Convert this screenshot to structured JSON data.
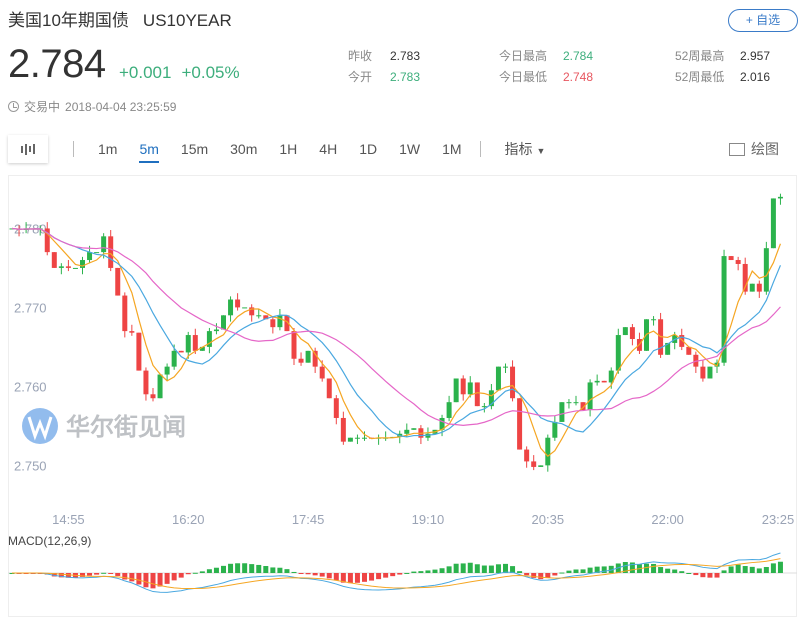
{
  "header": {
    "name": "美国10年期国债",
    "code": "US10YEAR",
    "add_label": "+ 自选",
    "price": "2.784",
    "change": "+0.001",
    "change_pct": "+0.05%",
    "status": "交易中",
    "timestamp": "2018-04-04 23:25:59"
  },
  "stats": [
    {
      "label": "昨收",
      "value": "2.783",
      "color": "neutral"
    },
    {
      "label": "今开",
      "value": "2.783",
      "color": "green"
    },
    {
      "label": "今日最高",
      "value": "2.784",
      "color": "green"
    },
    {
      "label": "今日最低",
      "value": "2.748",
      "color": "red"
    },
    {
      "label": "52周最高",
      "value": "2.957",
      "color": "neutral"
    },
    {
      "label": "52周最低",
      "value": "2.016",
      "color": "neutral"
    }
  ],
  "toolbar": {
    "timeframes": [
      "1m",
      "5m",
      "15m",
      "30m",
      "1H",
      "4H",
      "1D",
      "1W",
      "1M"
    ],
    "active": "5m",
    "indicators_label": "指标",
    "draw_label": "绘图"
  },
  "watermark": "华尔街见闻",
  "colors": {
    "up": "#2bb24c",
    "down": "#ee4444",
    "ma5": "#f5a623",
    "ma10": "#4aa8e0",
    "ma20": "#e567c8",
    "accent": "#1f6fbf"
  },
  "chart_data": {
    "type": "candlestick",
    "interval": "5m",
    "ylim": [
      2.7465,
      2.7855
    ],
    "yticks": [
      "2.780",
      "2.770",
      "2.760",
      "2.750"
    ],
    "xticks": [
      {
        "bar": 8,
        "label": "14:55"
      },
      {
        "bar": 25,
        "label": "16:20"
      },
      {
        "bar": 42,
        "label": "17:45"
      },
      {
        "bar": 59,
        "label": "19:10"
      },
      {
        "bar": 76,
        "label": "20:35"
      },
      {
        "bar": 93,
        "label": "22:00"
      },
      {
        "bar": 110,
        "label": "23:25"
      }
    ],
    "closes": [
      2.78,
      2.7798,
      2.78,
      2.7799,
      2.78,
      2.777,
      2.775,
      2.7752,
      2.775,
      2.775,
      2.776,
      2.777,
      2.777,
      2.779,
      2.775,
      2.7715,
      2.767,
      2.7668,
      2.762,
      2.759,
      2.7585,
      2.7615,
      2.7625,
      2.7645,
      2.7643,
      2.7665,
      2.7645,
      2.765,
      2.767,
      2.7672,
      2.769,
      2.771,
      2.77,
      2.77,
      2.769,
      2.769,
      2.7685,
      2.7675,
      2.769,
      2.767,
      2.7635,
      2.763,
      2.7645,
      2.7625,
      2.761,
      2.7585,
      2.756,
      2.753,
      2.7535,
      2.7535,
      2.7535,
      2.7534,
      2.7535,
      2.7535,
      2.7536,
      2.754,
      2.7545,
      2.7547,
      2.7535,
      2.754,
      2.7545,
      2.756,
      2.758,
      2.761,
      2.759,
      2.7605,
      2.7575,
      2.7575,
      2.7595,
      2.7625,
      2.7625,
      2.7585,
      2.752,
      2.7505,
      2.7498,
      2.75,
      2.7535,
      2.7555,
      2.758,
      2.758,
      2.758,
      2.757,
      2.7605,
      2.7607,
      2.7605,
      2.762,
      2.7665,
      2.7675,
      2.766,
      2.7645,
      2.7685,
      2.7685,
      2.764,
      2.7655,
      2.7665,
      2.765,
      2.764,
      2.7625,
      2.761,
      2.7625,
      2.763,
      2.7765,
      2.776,
      2.7755,
      2.772,
      2.773,
      2.772,
      2.7775,
      2.7838,
      2.784
    ],
    "indicators": {
      "ma": [
        5,
        10,
        20
      ],
      "macd_label": "MACD(12,26,9)"
    }
  }
}
